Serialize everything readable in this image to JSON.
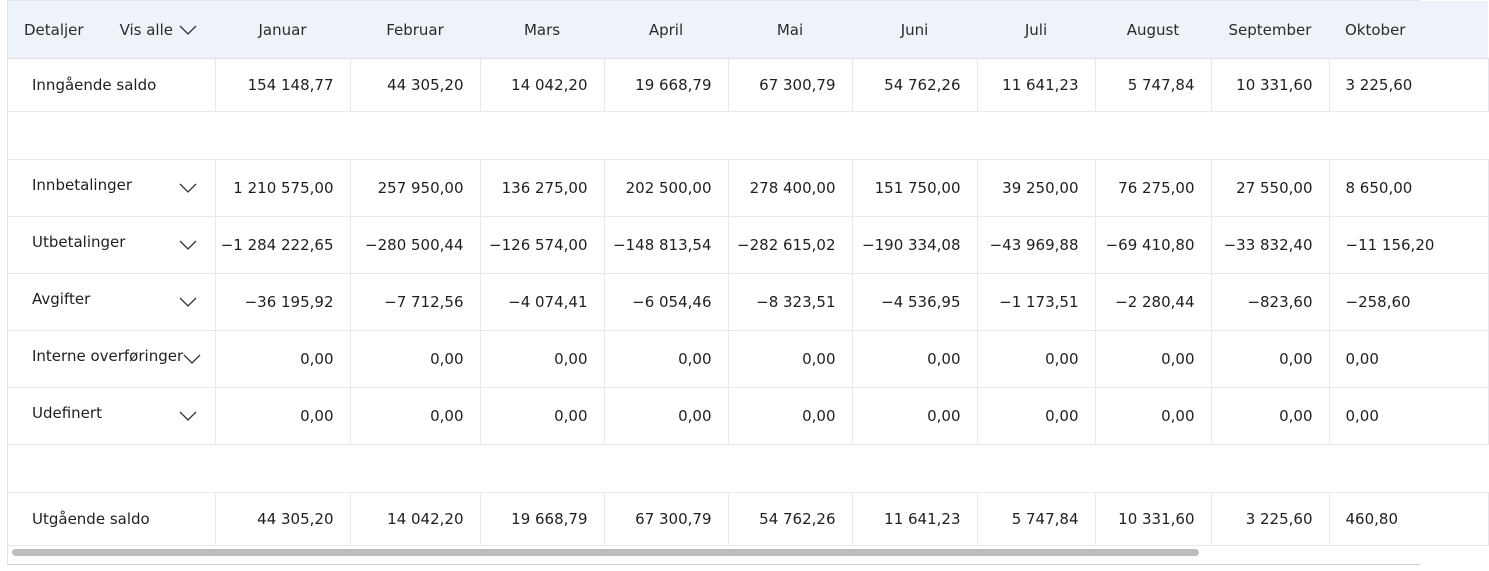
{
  "header": {
    "details_label": "Detaljer",
    "show_all_label": "Vis alle",
    "months": [
      "Januar",
      "Februar",
      "Mars",
      "April",
      "Mai",
      "Juni",
      "Juli",
      "August",
      "September",
      "Oktober"
    ]
  },
  "rows": {
    "opening": {
      "label": "Inngående saldo",
      "values": [
        "154 148,77",
        "44 305,20",
        "14 042,20",
        "19 668,79",
        "67 300,79",
        "54 762,26",
        "11 641,23",
        "5 747,84",
        "10 331,60",
        "3 225,60"
      ]
    },
    "payments_in": {
      "label": "Innbetalinger",
      "values": [
        "1 210 575,00",
        "257 950,00",
        "136 275,00",
        "202 500,00",
        "278 400,00",
        "151 750,00",
        "39 250,00",
        "76 275,00",
        "27 550,00",
        "8 650,00"
      ]
    },
    "payments_out": {
      "label": "Utbetalinger",
      "values": [
        "−1 284 222,65",
        "−280 500,44",
        "−126 574,00",
        "−148 813,54",
        "−282 615,02",
        "−190 334,08",
        "−43 969,88",
        "−69 410,80",
        "−33 832,40",
        "−11 156,20"
      ]
    },
    "fees": {
      "label": "Avgifter",
      "values": [
        "−36 195,92",
        "−7 712,56",
        "−4 074,41",
        "−6 054,46",
        "−8 323,51",
        "−4 536,95",
        "−1 173,51",
        "−2 280,44",
        "−823,60",
        "−258,60"
      ]
    },
    "internal": {
      "label": "Interne overføringer",
      "values": [
        "0,00",
        "0,00",
        "0,00",
        "0,00",
        "0,00",
        "0,00",
        "0,00",
        "0,00",
        "0,00",
        "0,00"
      ]
    },
    "undefined": {
      "label": "Udefinert",
      "values": [
        "0,00",
        "0,00",
        "0,00",
        "0,00",
        "0,00",
        "0,00",
        "0,00",
        "0,00",
        "0,00",
        "0,00"
      ]
    },
    "closing": {
      "label": "Utgående saldo",
      "values": [
        "44 305,20",
        "14 042,20",
        "19 668,79",
        "67 300,79",
        "54 762,26",
        "11 641,23",
        "5 747,84",
        "10 331,60",
        "3 225,60",
        "460,80"
      ]
    }
  },
  "icons": {
    "expand": "chevron-down-icon"
  },
  "colors": {
    "header_bg": "#eef3f9",
    "grid_line": "#e6e8ec",
    "scrollbar_thumb": "#bdbdbd"
  }
}
